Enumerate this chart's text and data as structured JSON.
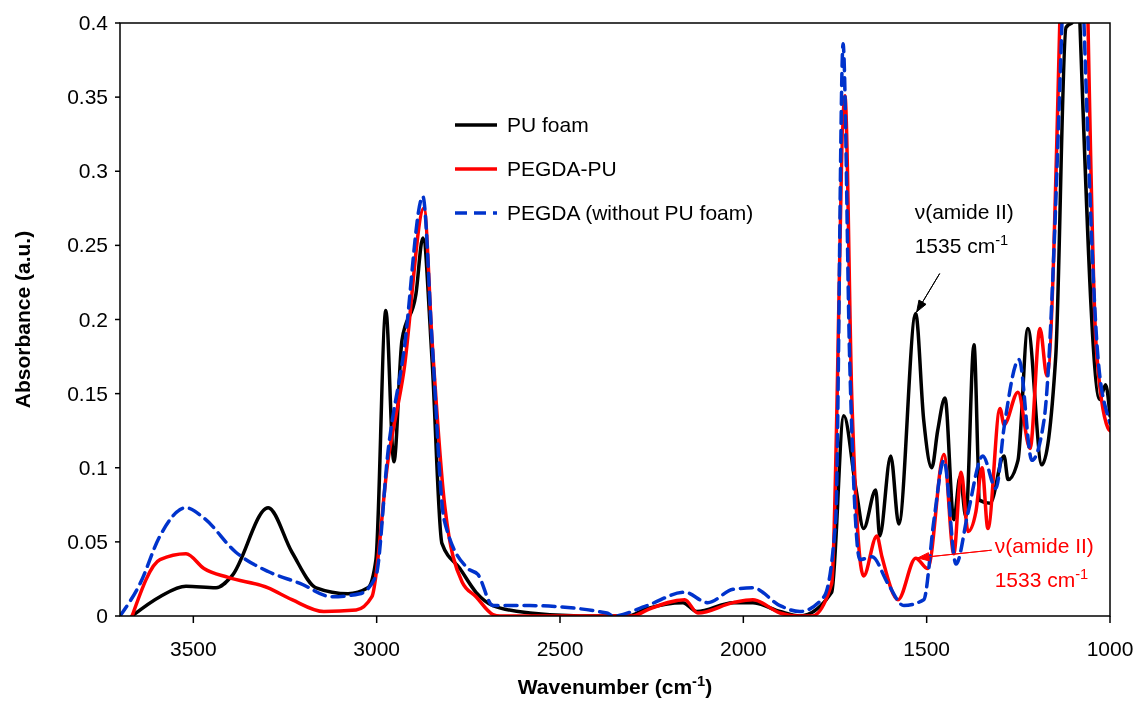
{
  "chart_data": {
    "type": "line",
    "xlabel": "Wavenumber (cm$^{-1}$)",
    "ylabel": "Absorbance (a.u.)",
    "xlim": [
      3700,
      1000
    ],
    "xticks": [
      3500,
      3000,
      2500,
      2000,
      1500,
      1000
    ],
    "ylim": [
      0,
      0.4
    ],
    "yticks": [
      0,
      0.05,
      0.1,
      0.15,
      0.2,
      0.25,
      0.3,
      0.35,
      0.4
    ],
    "grid": false,
    "legend": "top",
    "marker": "none",
    "series": [
      {
        "name": "PU foam",
        "color": "#000000",
        "line_style": "solid",
        "x": [
          3667,
          3591,
          3520,
          3438,
          3395,
          3296,
          3231,
          3165,
          3078,
          3024,
          3002,
          2975,
          2953,
          2931,
          2893,
          2874,
          2849,
          2822,
          2773,
          2729,
          2683,
          2582,
          2446,
          2317,
          2263,
          2165,
          2127,
          2028,
          1974,
          1900,
          1846,
          1759,
          1726,
          1693,
          1672,
          1639,
          1628,
          1598,
          1576,
          1530,
          1508,
          1486,
          1470,
          1450,
          1426,
          1409,
          1393,
          1371,
          1355,
          1327,
          1289,
          1278,
          1251,
          1224,
          1186,
          1148,
          1120,
          1104,
          1090,
          1082,
          1028,
          1012,
          1000
        ],
        "values": [
          0,
          0.013,
          0.02,
          0.019,
          0.027,
          0.073,
          0.043,
          0.019,
          0.015,
          0.019,
          0.038,
          0.206,
          0.104,
          0.186,
          0.217,
          0.255,
          0.173,
          0.049,
          0.032,
          0.016,
          0.007,
          0.002,
          0,
          0,
          0.005,
          0.009,
          0.003,
          0.009,
          0.009,
          0.003,
          0,
          0.016,
          0.135,
          0.086,
          0.059,
          0.085,
          0.054,
          0.108,
          0.062,
          0.204,
          0.132,
          0.1,
          0.125,
          0.147,
          0.065,
          0.094,
          0.067,
          0.183,
          0.078,
          0.076,
          0.108,
          0.092,
          0.105,
          0.194,
          0.102,
          0.175,
          0.397,
          0.4,
          null,
          0.4,
          0.146,
          0.156,
          0.135
        ]
      },
      {
        "name": "PEGDA-PU",
        "color": "#ff0000",
        "line_style": "solid",
        "x": [
          3667,
          3591,
          3520,
          3471,
          3405,
          3296,
          3231,
          3144,
          3056,
          3013,
          2969,
          2926,
          2871,
          2849,
          2816,
          2767,
          2729,
          2683,
          2664,
          2301,
          2263,
          2160,
          2124,
          2028,
          1974,
          1900,
          1854,
          1813,
          1759,
          1723,
          1704,
          1672,
          1636,
          1622,
          1578,
          1530,
          1497,
          1453,
          1426,
          1406,
          1387,
          1366,
          1349,
          1333,
          1300,
          1289,
          1251,
          1218,
          1191,
          1172,
          1137,
          1100,
          1060,
          1038,
          1006,
          1000
        ],
        "values": [
          0,
          0.038,
          0.042,
          0.032,
          0.026,
          0.019,
          0.011,
          0.003,
          0.004,
          0.013,
          0.105,
          0.165,
          0.275,
          0.186,
          0.078,
          0.023,
          0.013,
          0.001,
          0,
          0,
          0.004,
          0.011,
          0.002,
          0.009,
          0.011,
          0.002,
          0,
          0,
          0.022,
          0.351,
          0.146,
          0.027,
          0.054,
          0.04,
          0.011,
          0.039,
          0.032,
          0.109,
          0.042,
          0.097,
          0.057,
          0.07,
          0.1,
          0.059,
          0.14,
          0.129,
          0.151,
          0.113,
          0.194,
          0.162,
          0.4,
          null,
          0.4,
          0.183,
          0.127,
          0.125
        ]
      },
      {
        "name": "PEGDA (without PU foam)",
        "color": "#0033cc",
        "line_style": "dashed",
        "x": [
          3700,
          3645,
          3591,
          3520,
          3471,
          3384,
          3296,
          3209,
          3122,
          3046,
          3002,
          2969,
          2926,
          2874,
          2849,
          2816,
          2751,
          2724,
          2683,
          2582,
          2372,
          2355,
          2263,
          2160,
          2097,
          2028,
          1974,
          1900,
          1846,
          1780,
          1748,
          1728,
          1710,
          1682,
          1649,
          1606,
          1562,
          1508,
          1480,
          1453,
          1420,
          1387,
          1347,
          1311,
          1289,
          1248,
          1213,
          1180,
          1131,
          1100,
          1071,
          1033,
          1006,
          1000
        ],
        "values": [
          0,
          0.022,
          0.054,
          0.073,
          0.066,
          0.043,
          0.03,
          0.022,
          0.013,
          0.015,
          0.027,
          0.111,
          0.178,
          0.283,
          0.186,
          0.065,
          0.032,
          0.028,
          0.007,
          0.007,
          0.002,
          0,
          0.007,
          0.016,
          0.009,
          0.018,
          0.019,
          0.007,
          0.003,
          0.013,
          0.065,
          0.386,
          0.173,
          0.038,
          0.04,
          0.022,
          0.007,
          0.011,
          0.065,
          0.105,
          0.035,
          0.07,
          0.108,
          0.086,
          0.127,
          0.173,
          0.105,
          0.132,
          0.4,
          null,
          0.4,
          0.175,
          0.135,
          0.13
        ]
      }
    ],
    "annotations": [
      {
        "text": "ν(amide II)\n1535 cm$^{-1}$",
        "x": 1530,
        "y": 0.204
      },
      {
        "text": "ν(amide II)\n1533 cm$^{-1}$",
        "x": 1530,
        "y": 0.039
      }
    ]
  }
}
